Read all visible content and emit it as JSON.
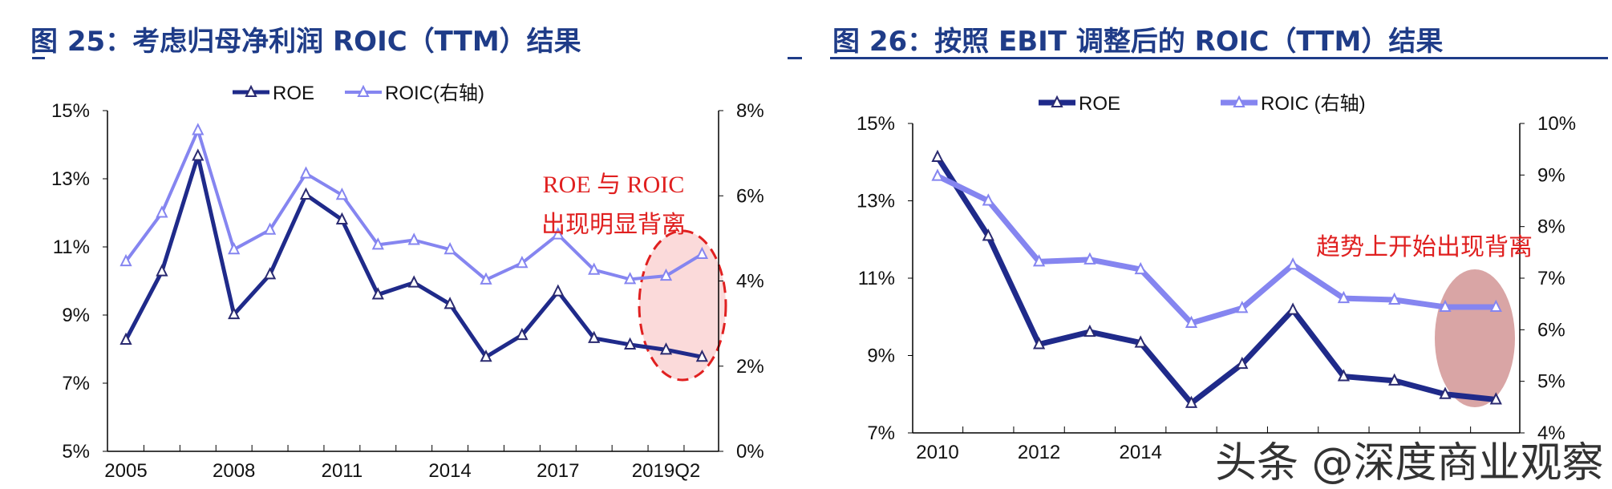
{
  "chart_data": [
    {
      "type": "line",
      "title": "图 25：考虑归母净利润 ROIC（TTM）结果",
      "categories": [
        "2005",
        "",
        "",
        "2008",
        "",
        "",
        "2011",
        "",
        "",
        "2014",
        "",
        "",
        "2017",
        "",
        "",
        "2019Q2",
        ""
      ],
      "series": [
        {
          "name": "ROE",
          "axis": "left",
          "color": "#1f2a8a",
          "values": [
            8.27,
            10.28,
            13.67,
            9.02,
            10.19,
            12.53,
            11.8,
            9.6,
            9.95,
            9.32,
            7.77,
            8.41,
            9.69,
            8.32,
            8.13,
            7.98,
            7.77
          ]
        },
        {
          "name": "ROIC(右轴)",
          "axis": "right",
          "color": "#8585f0",
          "values": [
            4.46,
            5.6,
            7.54,
            4.74,
            5.2,
            6.52,
            6.02,
            4.85,
            4.96,
            4.74,
            4.03,
            4.42,
            5.09,
            4.26,
            4.04,
            4.12,
            4.63
          ]
        }
      ],
      "left_axis": {
        "ylim": [
          5,
          15
        ],
        "ticks": [
          "5%",
          "7%",
          "9%",
          "11%",
          "13%",
          "15%"
        ]
      },
      "right_axis": {
        "ylim": [
          0,
          8
        ],
        "ticks": [
          "0%",
          "2%",
          "4%",
          "6%",
          "8%"
        ]
      },
      "annotation": [
        "ROE 与 ROIC",
        "出现明显背离"
      ],
      "highlight": {
        "style": "dashed-red-ellipse",
        "color": "#e02020",
        "fill": "#fbdada"
      },
      "legend": "top",
      "grid": false
    },
    {
      "type": "line",
      "title": "图 26：按照 EBIT 调整后的 ROIC（TTM）结果",
      "categories": [
        "2010",
        "",
        "2012",
        "",
        "2014",
        "",
        "",
        "",
        "",
        "",
        "",
        ""
      ],
      "series": [
        {
          "name": "ROE",
          "axis": "left",
          "color": "#1f2a8a",
          "values": [
            14.13,
            12.09,
            9.29,
            9.61,
            9.33,
            7.77,
            8.78,
            10.18,
            8.46,
            8.35,
            8.0,
            7.86
          ]
        },
        {
          "name": "ROIC (右轴)",
          "axis": "right",
          "color": "#8585f0",
          "values": [
            8.98,
            8.5,
            7.32,
            7.36,
            7.17,
            6.13,
            6.42,
            7.26,
            6.61,
            6.58,
            6.44,
            6.44
          ]
        }
      ],
      "left_axis": {
        "ylim": [
          7,
          15
        ],
        "ticks": [
          "7%",
          "9%",
          "11%",
          "13%",
          "15%"
        ]
      },
      "right_axis": {
        "ylim": [
          4,
          10
        ],
        "ticks": [
          "4%",
          "5%",
          "6%",
          "7%",
          "8%",
          "9%",
          "10%"
        ]
      },
      "annotation": [
        "趋势上开始出现背离"
      ],
      "highlight": {
        "style": "filled-ellipse",
        "fill": "#d9a5a5"
      },
      "legend": "top",
      "grid": false
    }
  ],
  "watermark": "头条 @深度商业观察"
}
